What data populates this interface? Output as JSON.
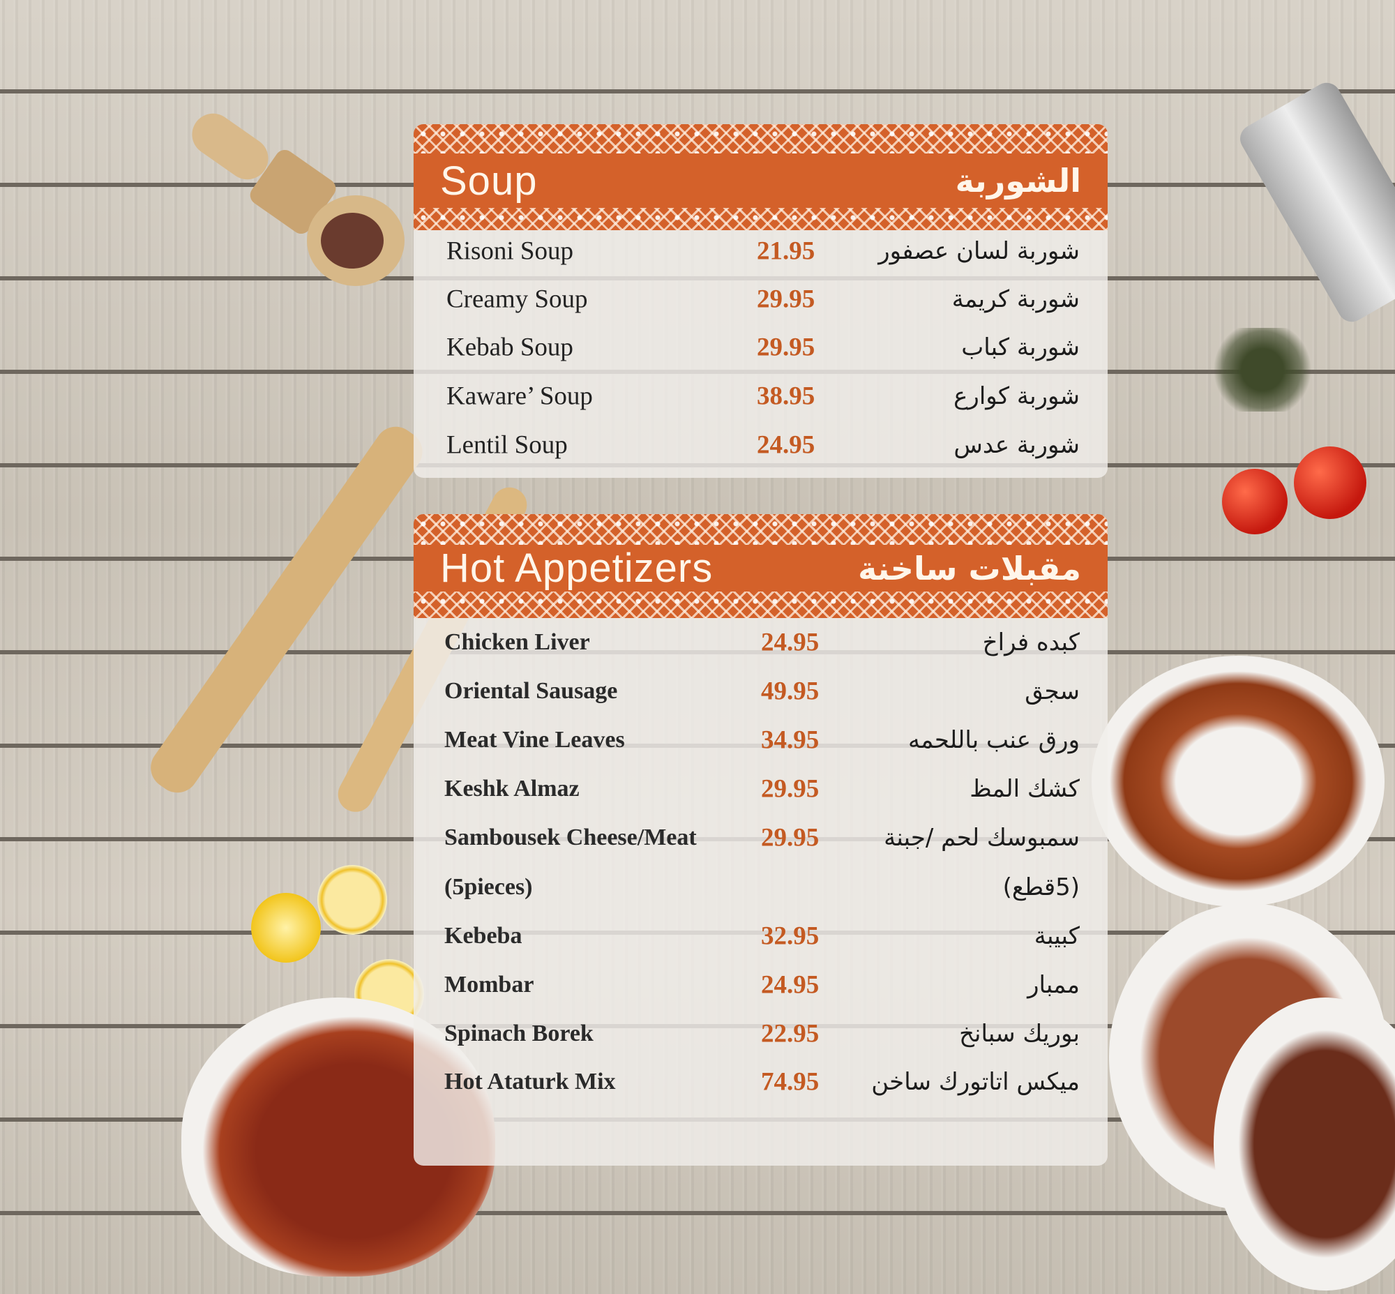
{
  "colors": {
    "accent": "#d4612a",
    "price": "#c45a22",
    "text": "#222222"
  },
  "sections": [
    {
      "title_en": "Soup",
      "title_ar": "الشوربة",
      "items": [
        {
          "name": "Risoni Soup",
          "price": "21.95",
          "name_ar": "شوربة لسان عصفور"
        },
        {
          "name": "Creamy Soup",
          "price": "29.95",
          "name_ar": "شوربة كريمة"
        },
        {
          "name": "Kebab Soup",
          "price": "29.95",
          "name_ar": "شوربة كباب"
        },
        {
          "name": "Kaware’ Soup",
          "price": "38.95",
          "name_ar": "شوربة كوارع"
        },
        {
          "name": "Lentil Soup",
          "price": "24.95",
          "name_ar": "شوربة عدس"
        }
      ]
    },
    {
      "title_en": "Hot Appetizers",
      "title_ar": "مقبلات ساخنة",
      "items": [
        {
          "name": "Chicken Liver",
          "price": "24.95",
          "name_ar": "كبده فراخ"
        },
        {
          "name": "Oriental Sausage",
          "price": "49.95",
          "name_ar": "سجق"
        },
        {
          "name": "Meat Vine Leaves",
          "price": "34.95",
          "name_ar": "ورق عنب باللحمه"
        },
        {
          "name": "Keshk Almaz",
          "price": "29.95",
          "name_ar": "كشك المظ"
        },
        {
          "name": "Sambousek Cheese/Meat",
          "price": "29.95",
          "name_ar": "سمبوسك لحم /جبنة"
        },
        {
          "name": "(5pieces)",
          "price": "",
          "name_ar": "(5قطع)"
        },
        {
          "name": "Kebeba",
          "price": "32.95",
          "name_ar": "كبيبة"
        },
        {
          "name": "Mombar",
          "price": "24.95",
          "name_ar": "ممبار"
        },
        {
          "name": "Spinach Borek",
          "price": "22.95",
          "name_ar": "بوريك سبانخ"
        },
        {
          "name": "Hot Ataturk Mix",
          "price": "74.95",
          "name_ar": "ميكس اتاتورك ساخن"
        }
      ]
    }
  ]
}
